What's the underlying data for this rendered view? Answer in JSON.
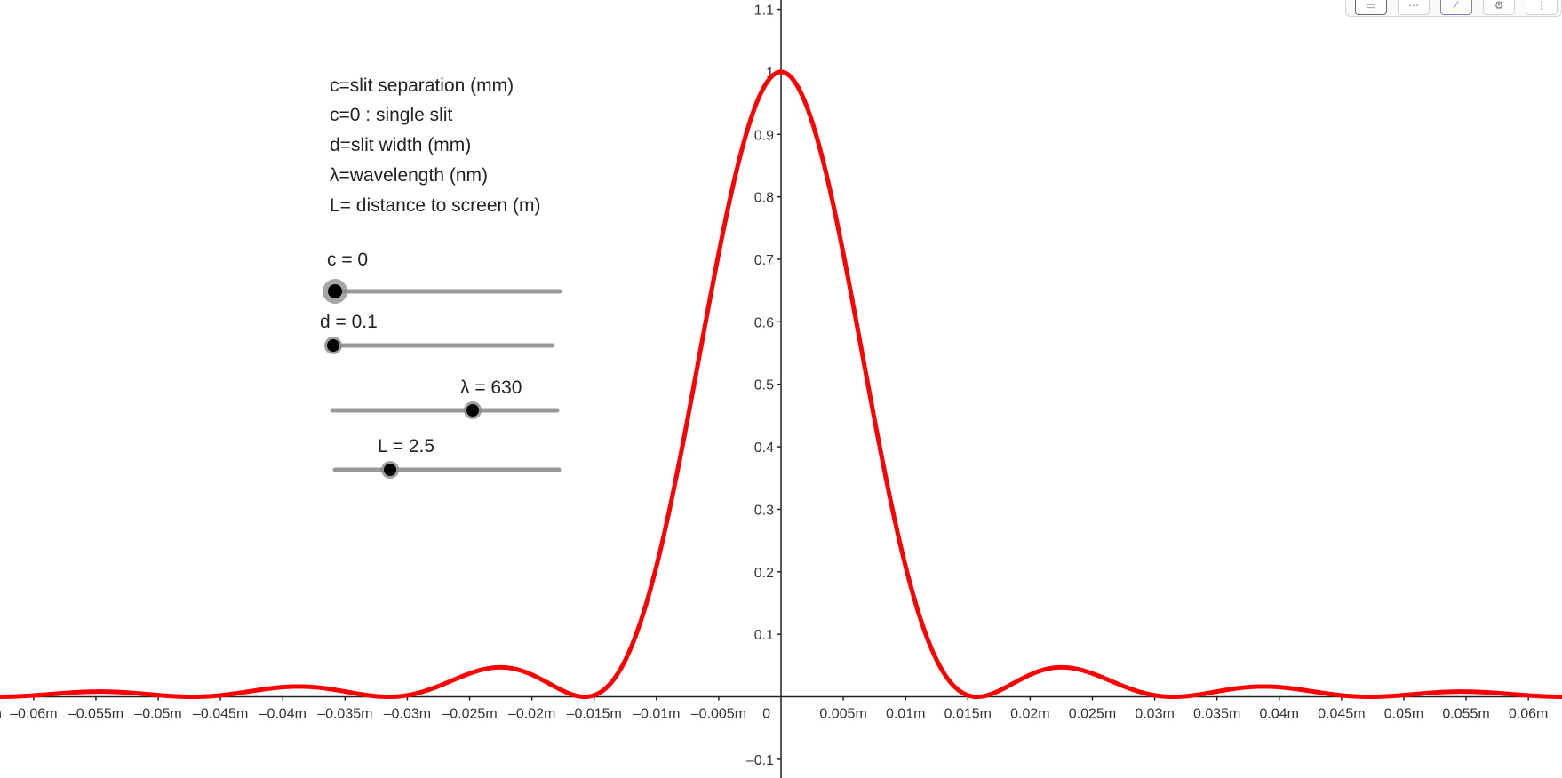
{
  "info_lines": [
    "c=slit separation (mm)",
    "c=0 : single slit",
    "d=slit width (mm)",
    "λ=wavelength (nm)",
    "L= distance to screen (m)"
  ],
  "sliders": [
    {
      "name": "c",
      "label": "c = 0",
      "value": 0,
      "min": 0,
      "max": 1
    },
    {
      "name": "d",
      "label": "d = 0.1",
      "value": 0.1,
      "min": 0.1,
      "max": 1
    },
    {
      "name": "lambda",
      "label": "λ = 630",
      "value": 630,
      "min": 400,
      "max": 800
    },
    {
      "name": "L",
      "label": "L = 2.5",
      "value": 2.5,
      "min": 1,
      "max": 6
    }
  ],
  "toolbar_icons": [
    "graphics-view-icon",
    "axes-icon",
    "style-icon",
    "settings-gear-icon",
    "more-menu-icon"
  ],
  "chart_data": {
    "type": "line",
    "function": "sinc^2 diffraction intensity",
    "xlim": [
      -0.0627,
      0.0627
    ],
    "ylim": [
      -0.13,
      1.115
    ],
    "x_ticks": [
      -0.06,
      -0.055,
      -0.05,
      -0.045,
      -0.04,
      -0.035,
      -0.03,
      -0.025,
      -0.02,
      -0.015,
      -0.01,
      -0.005,
      0.005,
      0.01,
      0.015,
      0.02,
      0.025,
      0.03,
      0.035,
      0.04,
      0.045,
      0.05,
      0.055,
      0.06
    ],
    "x_tick_labels": [
      "–0.06m",
      "–0.055m",
      "–0.05m",
      "–0.045m",
      "–0.04m",
      "–0.035m",
      "–0.03m",
      "–0.025m",
      "–0.02m",
      "–0.015m",
      "–0.01m",
      "–0.005m",
      "0.005m",
      "0.01m",
      "0.015m",
      "0.02m",
      "0.025m",
      "0.03m",
      "0.035m",
      "0.04m",
      "0.045m",
      "0.05m",
      "0.055m",
      "0.06m"
    ],
    "x_edge_label": "m",
    "origin_label": "0",
    "y_ticks": [
      -0.1,
      0.1,
      0.2,
      0.3,
      0.4,
      0.5,
      0.6,
      0.7,
      0.8,
      0.9,
      1,
      1.1
    ],
    "y_tick_labels": [
      "–0.1",
      "0.1",
      "0.2",
      "0.3",
      "0.4",
      "0.5",
      "0.6",
      "0.7",
      "0.8",
      "0.9",
      "1",
      "1.1"
    ],
    "series": [
      {
        "color": "#ff0000",
        "first_zero_x": 0.01575
      }
    ]
  }
}
